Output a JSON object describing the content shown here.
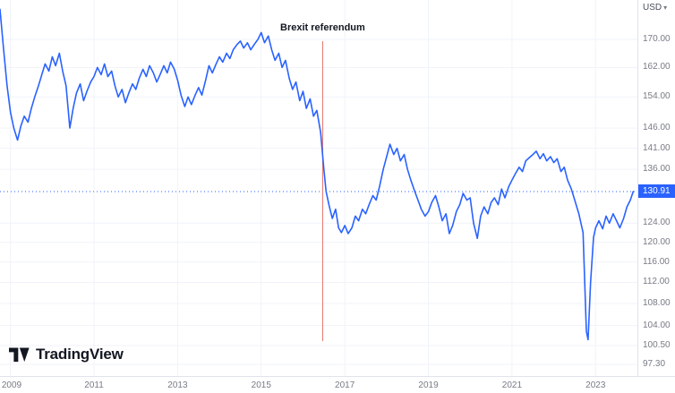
{
  "header": {
    "currency_label": "USD"
  },
  "logo": {
    "text": "TradingView"
  },
  "chart_data": {
    "type": "line",
    "annotation": {
      "label": "Brexit referendum",
      "x": 2016.47
    },
    "current_price": 130.91,
    "line_color": "#2962FF",
    "event_line_color": "#E8736A",
    "price_line_color": "#2962FF",
    "grid_color": "#f0f3fa",
    "x_axis": {
      "labels": [
        "2009",
        "2011",
        "2013",
        "2015",
        "2017",
        "2019",
        "2021",
        "2023"
      ],
      "range": [
        2008.75,
        2024.0
      ]
    },
    "y_axis": {
      "unit": "USD",
      "scale": "log",
      "labels": [
        "170.00",
        "162.00",
        "154.00",
        "146.00",
        "141.00",
        "136.00",
        "124.00",
        "120.00",
        "116.00",
        "112.00",
        "108.00",
        "104.00",
        "100.50",
        "97.30"
      ],
      "range": [
        97.3,
        180
      ]
    },
    "series": [
      {
        "points": [
          [
            2008.75,
            179
          ],
          [
            2008.83,
            168
          ],
          [
            2008.92,
            157
          ],
          [
            2009,
            150
          ],
          [
            2009.08,
            146
          ],
          [
            2009.17,
            143
          ],
          [
            2009.25,
            146.5
          ],
          [
            2009.33,
            149
          ],
          [
            2009.42,
            147.5
          ],
          [
            2009.5,
            151
          ],
          [
            2009.58,
            154
          ],
          [
            2009.67,
            157
          ],
          [
            2009.75,
            160
          ],
          [
            2009.83,
            163
          ],
          [
            2009.92,
            161
          ],
          [
            2010,
            165
          ],
          [
            2010.08,
            162.5
          ],
          [
            2010.17,
            166
          ],
          [
            2010.25,
            161
          ],
          [
            2010.33,
            157
          ],
          [
            2010.42,
            146
          ],
          [
            2010.5,
            151
          ],
          [
            2010.58,
            155
          ],
          [
            2010.67,
            157.5
          ],
          [
            2010.75,
            153
          ],
          [
            2010.83,
            155.5
          ],
          [
            2010.92,
            158
          ],
          [
            2011,
            159.5
          ],
          [
            2011.08,
            162
          ],
          [
            2011.17,
            160
          ],
          [
            2011.25,
            163
          ],
          [
            2011.33,
            159.5
          ],
          [
            2011.42,
            161
          ],
          [
            2011.5,
            157
          ],
          [
            2011.58,
            154
          ],
          [
            2011.67,
            156
          ],
          [
            2011.75,
            152.5
          ],
          [
            2011.83,
            155
          ],
          [
            2011.92,
            157.5
          ],
          [
            2012,
            156
          ],
          [
            2012.08,
            159
          ],
          [
            2012.17,
            161.5
          ],
          [
            2012.25,
            159.5
          ],
          [
            2012.33,
            162.5
          ],
          [
            2012.42,
            160.5
          ],
          [
            2012.5,
            158
          ],
          [
            2012.58,
            160
          ],
          [
            2012.67,
            162.5
          ],
          [
            2012.75,
            160.5
          ],
          [
            2012.83,
            163.5
          ],
          [
            2012.92,
            161.5
          ],
          [
            2013,
            158.5
          ],
          [
            2013.08,
            154.5
          ],
          [
            2013.17,
            151.5
          ],
          [
            2013.25,
            154
          ],
          [
            2013.33,
            152
          ],
          [
            2013.42,
            154.5
          ],
          [
            2013.5,
            156.5
          ],
          [
            2013.58,
            154.5
          ],
          [
            2013.67,
            158.5
          ],
          [
            2013.75,
            162.5
          ],
          [
            2013.83,
            160.5
          ],
          [
            2013.92,
            163
          ],
          [
            2014,
            165
          ],
          [
            2014.08,
            163.5
          ],
          [
            2014.17,
            166
          ],
          [
            2014.25,
            164.5
          ],
          [
            2014.33,
            167
          ],
          [
            2014.42,
            168.5
          ],
          [
            2014.5,
            169.5
          ],
          [
            2014.58,
            167.5
          ],
          [
            2014.67,
            169
          ],
          [
            2014.75,
            167
          ],
          [
            2014.83,
            168.5
          ],
          [
            2014.92,
            170
          ],
          [
            2015,
            172
          ],
          [
            2015.08,
            169
          ],
          [
            2015.17,
            171
          ],
          [
            2015.25,
            167
          ],
          [
            2015.33,
            164
          ],
          [
            2015.42,
            166
          ],
          [
            2015.5,
            162
          ],
          [
            2015.58,
            164
          ],
          [
            2015.67,
            159
          ],
          [
            2015.75,
            156
          ],
          [
            2015.83,
            158
          ],
          [
            2015.92,
            153
          ],
          [
            2016,
            155.5
          ],
          [
            2016.08,
            151
          ],
          [
            2016.17,
            153.5
          ],
          [
            2016.25,
            149
          ],
          [
            2016.33,
            150.5
          ],
          [
            2016.42,
            145
          ],
          [
            2016.5,
            136
          ],
          [
            2016.55,
            131
          ],
          [
            2016.62,
            128
          ],
          [
            2016.7,
            125
          ],
          [
            2016.78,
            127
          ],
          [
            2016.85,
            123
          ],
          [
            2016.92,
            122
          ],
          [
            2017,
            123.5
          ],
          [
            2017.08,
            121.8
          ],
          [
            2017.17,
            123
          ],
          [
            2017.25,
            125.5
          ],
          [
            2017.33,
            124.5
          ],
          [
            2017.42,
            127
          ],
          [
            2017.5,
            126
          ],
          [
            2017.58,
            128
          ],
          [
            2017.67,
            130
          ],
          [
            2017.75,
            129
          ],
          [
            2017.83,
            132
          ],
          [
            2017.92,
            136
          ],
          [
            2018,
            139
          ],
          [
            2018.08,
            142
          ],
          [
            2018.17,
            139.5
          ],
          [
            2018.25,
            141
          ],
          [
            2018.33,
            138
          ],
          [
            2018.42,
            139.5
          ],
          [
            2018.5,
            136
          ],
          [
            2018.58,
            133.5
          ],
          [
            2018.67,
            131
          ],
          [
            2018.75,
            129
          ],
          [
            2018.83,
            127
          ],
          [
            2018.92,
            125.5
          ],
          [
            2019,
            126.5
          ],
          [
            2019.08,
            128.5
          ],
          [
            2019.17,
            130
          ],
          [
            2019.25,
            127.5
          ],
          [
            2019.33,
            124.5
          ],
          [
            2019.42,
            126
          ],
          [
            2019.5,
            121.8
          ],
          [
            2019.58,
            123.5
          ],
          [
            2019.67,
            126.5
          ],
          [
            2019.75,
            128
          ],
          [
            2019.83,
            130.5
          ],
          [
            2019.92,
            129
          ],
          [
            2020,
            129.5
          ],
          [
            2020.08,
            124
          ],
          [
            2020.17,
            120.8
          ],
          [
            2020.25,
            125.5
          ],
          [
            2020.33,
            127.5
          ],
          [
            2020.42,
            126
          ],
          [
            2020.5,
            128.5
          ],
          [
            2020.58,
            129.5
          ],
          [
            2020.67,
            128
          ],
          [
            2020.75,
            131.5
          ],
          [
            2020.83,
            129.5
          ],
          [
            2020.92,
            132
          ],
          [
            2021,
            133.5
          ],
          [
            2021.08,
            135
          ],
          [
            2021.17,
            136.5
          ],
          [
            2021.25,
            135.5
          ],
          [
            2021.33,
            138
          ],
          [
            2021.42,
            138.8
          ],
          [
            2021.5,
            139.5
          ],
          [
            2021.58,
            140.3
          ],
          [
            2021.67,
            138.5
          ],
          [
            2021.75,
            139.7
          ],
          [
            2021.83,
            138
          ],
          [
            2021.92,
            139
          ],
          [
            2022,
            137.6
          ],
          [
            2022.08,
            138.5
          ],
          [
            2022.17,
            135.5
          ],
          [
            2022.25,
            136.5
          ],
          [
            2022.33,
            133.5
          ],
          [
            2022.42,
            131.5
          ],
          [
            2022.5,
            129
          ],
          [
            2022.6,
            126
          ],
          [
            2022.7,
            122
          ],
          [
            2022.78,
            103
          ],
          [
            2022.82,
            101.5
          ],
          [
            2022.88,
            112
          ],
          [
            2022.95,
            121
          ],
          [
            2023,
            123
          ],
          [
            2023.08,
            124.5
          ],
          [
            2023.17,
            122.8
          ],
          [
            2023.25,
            125.5
          ],
          [
            2023.33,
            124
          ],
          [
            2023.42,
            126
          ],
          [
            2023.5,
            124.5
          ],
          [
            2023.58,
            123
          ],
          [
            2023.67,
            125
          ],
          [
            2023.75,
            127.5
          ],
          [
            2023.83,
            129
          ],
          [
            2023.9,
            130.91
          ]
        ]
      }
    ]
  }
}
